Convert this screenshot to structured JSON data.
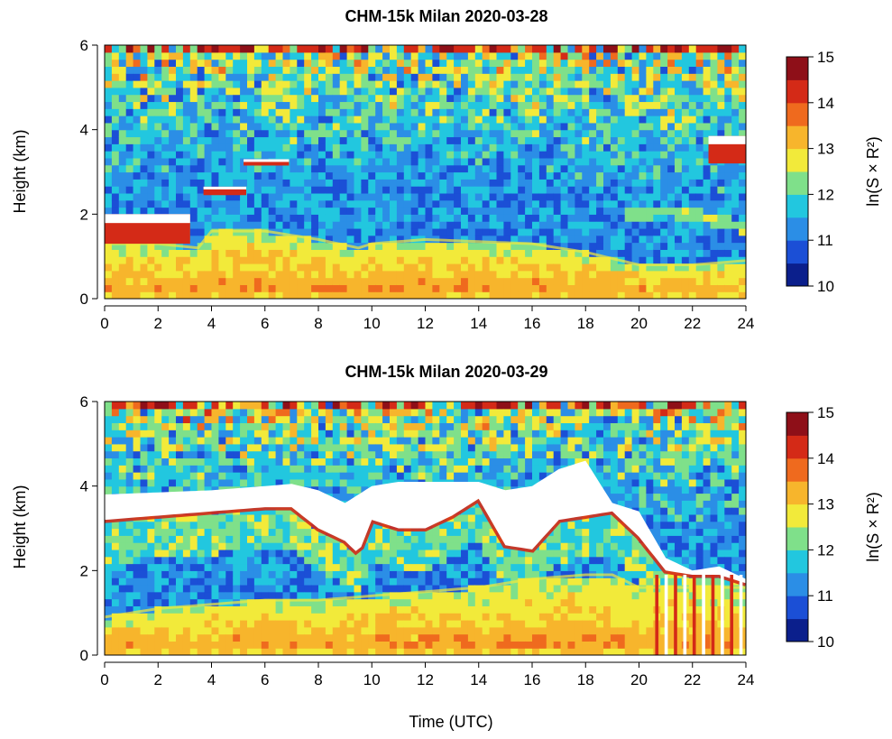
{
  "figure": {
    "xlabel": "Time (UTC)"
  },
  "colorscale": [
    "#0b1f8c",
    "#1b4fd6",
    "#2b8ee6",
    "#22c7df",
    "#7fe08a",
    "#f2ea3a",
    "#f7b52c",
    "#ef6a1e",
    "#d42a17",
    "#8e0f18"
  ],
  "chart_data": [
    {
      "type": "heatmap",
      "title": "CHM-15k Milan 2020-03-28",
      "ylabel": "Height (km)",
      "xlim": [
        0,
        24
      ],
      "ylim": [
        0,
        6
      ],
      "x_ticks": [
        0,
        2,
        4,
        6,
        8,
        10,
        12,
        14,
        16,
        18,
        20,
        22,
        24
      ],
      "y_ticks": [
        0,
        2,
        4,
        6
      ],
      "colorbar": {
        "label": "ln(S × R²)",
        "range": [
          10,
          15
        ],
        "ticks": [
          10,
          11,
          12,
          13,
          14,
          15
        ]
      },
      "layers": [
        {
          "feature": "aerosol-layer-top",
          "time": [
            0,
            2,
            3.5,
            4,
            6,
            8,
            9.5,
            10,
            12,
            14,
            16,
            18,
            20,
            22,
            24
          ],
          "height": [
            1.3,
            1.3,
            1.2,
            1.6,
            1.6,
            1.4,
            1.2,
            1.3,
            1.4,
            1.35,
            1.3,
            1.1,
            0.8,
            0.8,
            0.9
          ]
        },
        {
          "feature": "elevated-aerosol-layer",
          "time": [
            19.5,
            21,
            22,
            24
          ],
          "height": [
            2.0,
            2.1,
            2.0,
            1.7
          ]
        },
        {
          "feature": "cloud",
          "t0": 0.0,
          "t1": 3.2,
          "h0": 1.3,
          "h1": 2.0
        },
        {
          "feature": "cloud",
          "t0": 3.7,
          "t1": 5.3,
          "h0": 2.45,
          "h1": 2.65
        },
        {
          "feature": "cloud",
          "t0": 5.2,
          "t1": 6.9,
          "h0": 3.15,
          "h1": 3.3
        },
        {
          "feature": "cloud",
          "t0": 22.6,
          "t1": 24.0,
          "h0": 3.2,
          "h1": 3.85
        }
      ]
    },
    {
      "type": "heatmap",
      "title": "CHM-15k Milan 2020-03-29",
      "ylabel": "Height (km)",
      "xlim": [
        0,
        24
      ],
      "ylim": [
        0,
        6
      ],
      "x_ticks": [
        0,
        2,
        4,
        6,
        8,
        10,
        12,
        14,
        16,
        18,
        20,
        22,
        24
      ],
      "y_ticks": [
        0,
        2,
        4,
        6
      ],
      "colorbar": {
        "label": "ln(S × R²)",
        "range": [
          10,
          15
        ],
        "ticks": [
          10,
          11,
          12,
          13,
          14,
          15
        ]
      },
      "layers": [
        {
          "feature": "aerosol-layer-top",
          "time": [
            0,
            2,
            4,
            6,
            8,
            10,
            12,
            14,
            16,
            18,
            19,
            20
          ],
          "height": [
            0.9,
            1.1,
            1.2,
            1.3,
            1.3,
            1.4,
            1.5,
            1.6,
            1.8,
            1.9,
            1.9,
            1.6
          ]
        },
        {
          "feature": "cloud-base",
          "time": [
            0,
            2,
            4,
            6,
            7,
            8,
            9,
            9.5,
            10,
            11,
            12,
            13,
            14,
            15,
            16,
            17,
            18,
            19,
            20,
            21,
            22,
            23,
            24
          ],
          "height": [
            3.2,
            3.3,
            3.4,
            3.5,
            3.5,
            3.0,
            2.7,
            2.4,
            3.2,
            3.0,
            3.0,
            3.3,
            3.7,
            2.6,
            2.5,
            3.2,
            3.3,
            3.4,
            2.8,
            2.0,
            1.9,
            1.9,
            1.7
          ]
        },
        {
          "feature": "cloud-top",
          "time": [
            0,
            2,
            4,
            6,
            7,
            8,
            9,
            10,
            11,
            12,
            13,
            14,
            15,
            16,
            17,
            18,
            19,
            20,
            21,
            22,
            23,
            24
          ],
          "height": [
            3.8,
            3.85,
            3.9,
            4.0,
            4.05,
            3.9,
            3.6,
            4.0,
            4.1,
            4.1,
            4.1,
            4.1,
            3.9,
            4.0,
            4.4,
            4.6,
            3.6,
            3.4,
            2.3,
            2.0,
            2.1,
            1.8
          ]
        },
        {
          "feature": "precipitation",
          "t0": 20.5,
          "t1": 24.0,
          "h0": 0.0,
          "h1": 1.9
        }
      ]
    }
  ]
}
